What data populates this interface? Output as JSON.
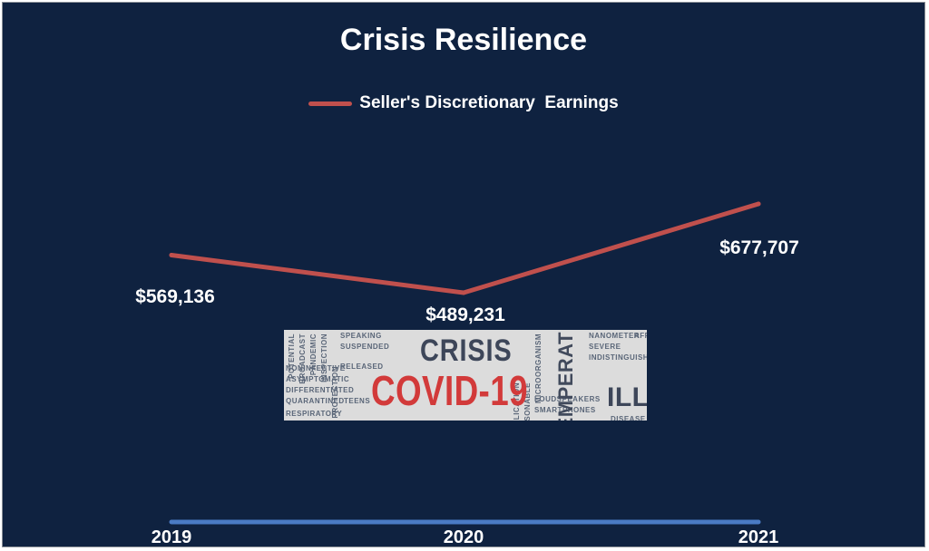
{
  "chart_data": {
    "type": "line",
    "title": "Crisis Resilience",
    "categories": [
      "2019",
      "2020",
      "2021"
    ],
    "series": [
      {
        "name": "Seller's Discretionary  Earnings",
        "values": [
          569136,
          489231,
          677707
        ],
        "value_labels": [
          "$569,136",
          "$489,231",
          "$677,707"
        ],
        "color": "#c0504d"
      }
    ],
    "axis_color": "#4a7bc4",
    "background_color": "#0f2240",
    "legend_position": "top",
    "grid": false,
    "y_axis_visible": false
  },
  "image": {
    "words": [
      "CRISIS",
      "COVID-19",
      "TEMPERAT",
      "ILL"
    ],
    "small_words": [
      "SPEAKING",
      "SUSPENDED",
      "RELEASED",
      "POTENTIAL",
      "BROADCAST",
      "PANDEMIC",
      "INSPECTION",
      "PROTECTION",
      "NONINFECTIVE",
      "ASYMPTOMATIC",
      "TEENS",
      "RESPIRATORY",
      "DIFFERENTIATED",
      "QUARANTINED",
      "COMPLICATION",
      "REASONABLE",
      "MICROORGANISM",
      "NANOMETER",
      "SEVERE",
      "INDISTINGUISHABLE",
      "LOUDSPEAKERS",
      "SMARTPHONES",
      "AFRICA",
      "DISEASE"
    ]
  }
}
